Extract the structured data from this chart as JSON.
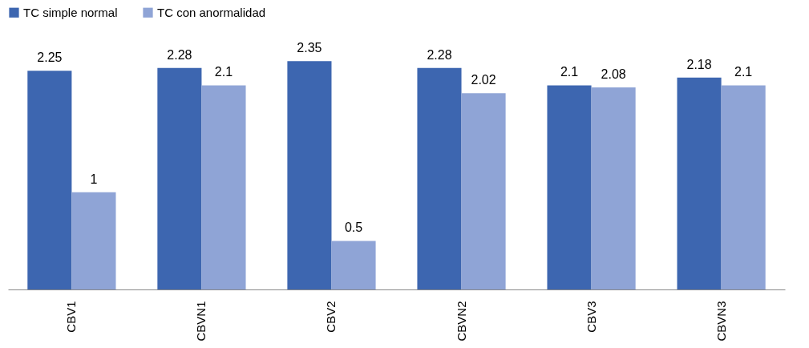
{
  "chart_data": {
    "type": "bar",
    "categories": [
      "CBV1",
      "CBVN1",
      "CBV2",
      "CBVN2",
      "CBV3",
      "CBVN3"
    ],
    "series": [
      {
        "name": "TC simple normal",
        "color": "#3d66b0",
        "values": [
          2.25,
          2.28,
          2.35,
          2.28,
          2.1,
          2.18
        ]
      },
      {
        "name": "TC con anormalidad",
        "color": "#8fa4d6",
        "values": [
          1,
          2.1,
          0.5,
          2.02,
          2.08,
          2.1
        ]
      }
    ],
    "data_labels": true,
    "legend": "top",
    "grid": false,
    "tick_labels": "x"
  }
}
